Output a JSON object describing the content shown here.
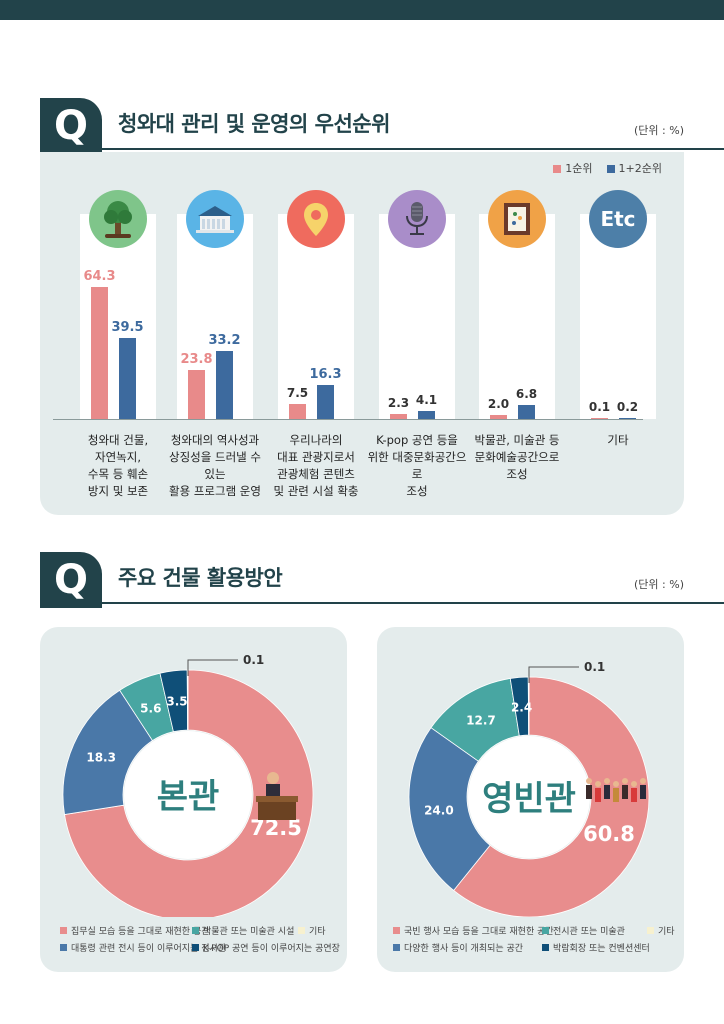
{
  "q1": {
    "q_letter": "Q",
    "title": "청와대 관리 및 운영의 우선순위",
    "unit": "(단위 : %)"
  },
  "q2": {
    "q_letter": "Q",
    "title": "주요 건물 활용방안",
    "unit": "(단위 : %)"
  },
  "colors": {
    "dark": "#22434a",
    "rank1": "#e88a8a",
    "rank12": "#3d6a9e",
    "panel": "#e4ecec",
    "pink_seg": "#e88d8d",
    "blue_seg": "#4a78a8",
    "teal_seg": "#48a6a2",
    "navy_seg": "#0f4f78",
    "cream_seg": "#f7f1cf"
  },
  "chart_data": [
    {
      "type": "bar",
      "title": "청와대 관리 및 운영의 우선순위",
      "unit": "(단위 : %)",
      "categories": [
        "청와대 건물, 자연녹지, 수목 등 훼손 방지 및 보존",
        "청와대의 역사성과 상징성을 드러낼 수 있는 활용 프로그램 운영",
        "우리나라의 대표 관광지로서 관광체험 콘텐츠 및 관련 시설 확충",
        "K-pop 공연 등을 위한 대중문화공간으로 조성",
        "박물관, 미술관 등 문화예술공간으로 조성",
        "기타"
      ],
      "category_lines": [
        [
          "청와대 건물,",
          "자연녹지,",
          "수목 등 훼손",
          "방지 및 보존"
        ],
        [
          "청와대의 역사성과",
          "상징성을 드러낼 수 있는",
          "활용 프로그램 운영"
        ],
        [
          "우리나라의",
          "대표 관광지로서",
          "관광체험 콘텐츠",
          "및 관련 시설 확충"
        ],
        [
          "K-pop 공연 등을",
          "위한 대중문화공간으로",
          "조성"
        ],
        [
          "박물관, 미술관 등",
          "문화예술공간으로",
          "조성"
        ],
        [
          "기타"
        ]
      ],
      "series": [
        {
          "name": "1순위",
          "values": [
            64.3,
            23.8,
            7.5,
            2.3,
            2.0,
            0.1
          ],
          "labels": [
            "64.3",
            "23.8",
            "7.5",
            "2.3",
            "2.0",
            "0.1"
          ]
        },
        {
          "name": "1+2순위",
          "values": [
            39.5,
            33.2,
            16.3,
            4.1,
            6.8,
            0.2
          ],
          "labels": [
            "39.5",
            "33.2",
            "16.3",
            "4.1",
            "6.8",
            "0.2"
          ]
        }
      ],
      "icons": [
        "tree-icon",
        "building-icon",
        "location-pin-icon",
        "microphone-icon",
        "picture-frame-icon",
        "etc-icon"
      ],
      "icon_colors": [
        "#7fc58a",
        "#5ab4e6",
        "#ef6b5e",
        "#a98dc9",
        "#f0a247",
        "#4d7fa8"
      ],
      "etc_icon_text": "Etc",
      "legend_placement": "top-right",
      "ylim": [
        0,
        70
      ]
    },
    {
      "type": "pie",
      "center_label": "본관",
      "slices": [
        {
          "name": "집무실 모습 등을 그대로 재현한 공간",
          "value": 72.5,
          "label": "72.5",
          "color": "#e88d8d"
        },
        {
          "name": "대통령 관련 전시 등이 이루어지는 전시관",
          "value": 18.3,
          "label": "18.3",
          "color": "#4a78a8"
        },
        {
          "name": "박물관 또는 미술관 시설",
          "value": 5.6,
          "label": "5.6",
          "color": "#48a6a2"
        },
        {
          "name": "K-POP 공연 등이 이루어지는 공연장",
          "value": 3.5,
          "label": "3.5",
          "color": "#0f4f78"
        },
        {
          "name": "기타",
          "value": 0.1,
          "label": "0.1",
          "color": "#f7f1cf"
        }
      ]
    },
    {
      "type": "pie",
      "center_label": "영빈관",
      "slices": [
        {
          "name": "국빈 행사 모습 등을 그대로 재현한 공간",
          "value": 60.8,
          "label": "60.8",
          "color": "#e88d8d"
        },
        {
          "name": "다양한 행사 등이 개최되는 공간",
          "value": 24.0,
          "label": "24.0",
          "color": "#4a78a8"
        },
        {
          "name": "전시관 또는 미술관",
          "value": 12.7,
          "label": "12.7",
          "color": "#48a6a2"
        },
        {
          "name": "박람회장 또는 컨벤션센터",
          "value": 2.4,
          "label": "2.4",
          "color": "#0f4f78"
        },
        {
          "name": "기타",
          "value": 0.1,
          "label": "0.1",
          "color": "#f7f1cf"
        }
      ]
    }
  ]
}
